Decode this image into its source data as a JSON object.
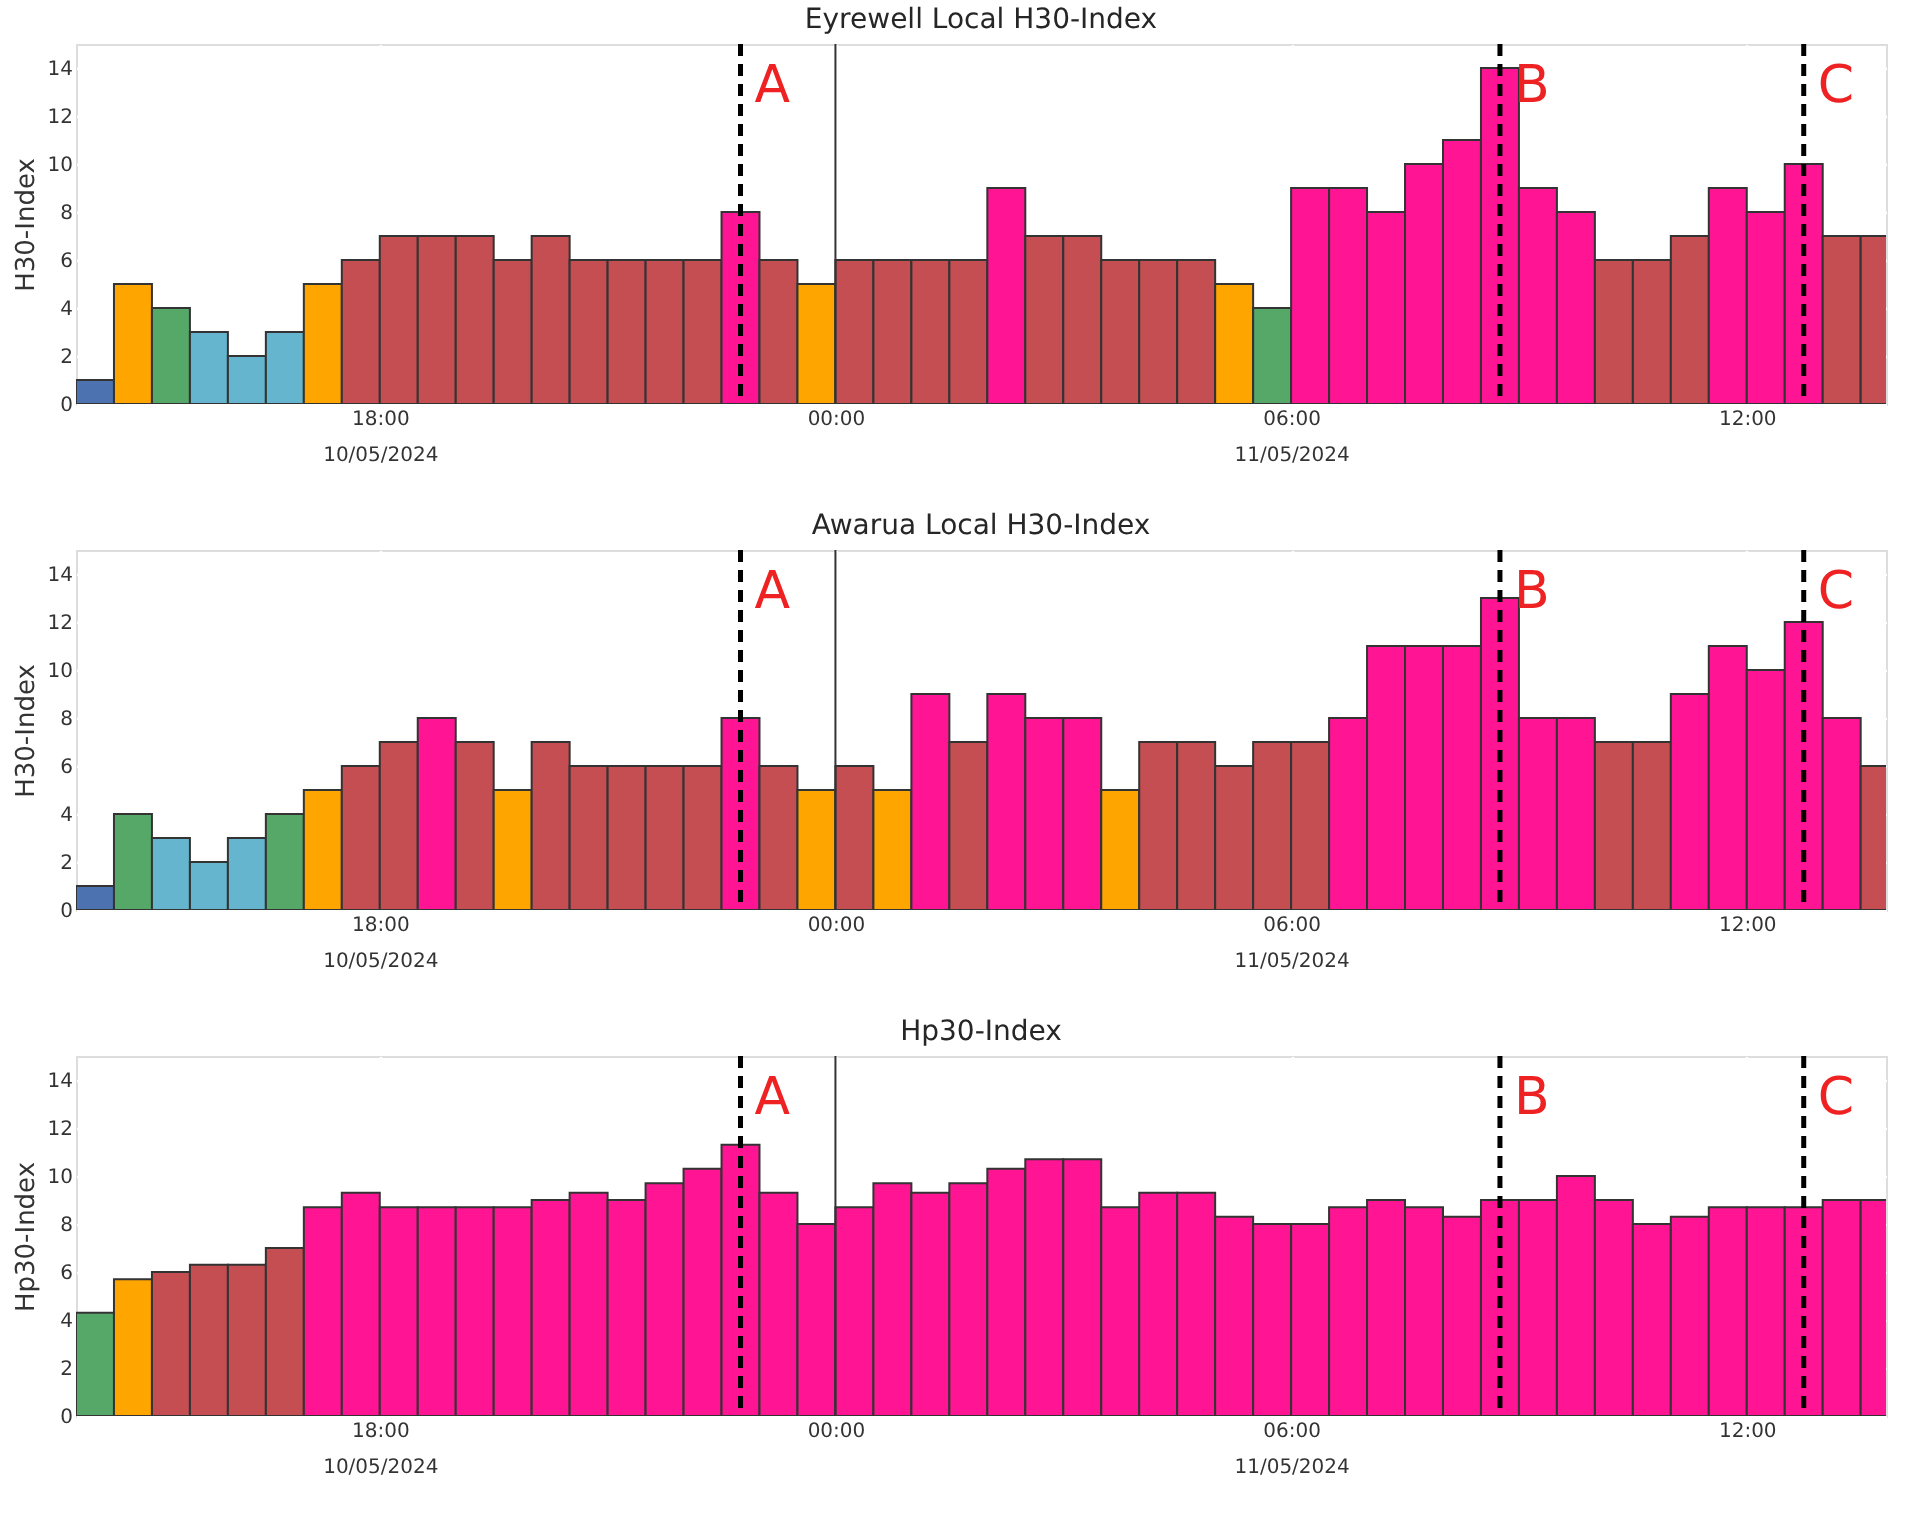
{
  "chart_data": [
    {
      "type": "bar",
      "title": "Eyrewell Local H30-Index",
      "ylabel": "H30-Index",
      "x": [
        "2024-05-10T14:15",
        "2024-05-10T14:45",
        "2024-05-10T15:15",
        "2024-05-10T15:45",
        "2024-05-10T16:15",
        "2024-05-10T16:45",
        "2024-05-10T17:15",
        "2024-05-10T17:45",
        "2024-05-10T18:15",
        "2024-05-10T18:45",
        "2024-05-10T19:15",
        "2024-05-10T19:45",
        "2024-05-10T20:15",
        "2024-05-10T20:45",
        "2024-05-10T21:15",
        "2024-05-10T21:45",
        "2024-05-10T22:15",
        "2024-05-10T22:45",
        "2024-05-10T23:15",
        "2024-05-10T23:45",
        "2024-05-11T00:15",
        "2024-05-11T00:45",
        "2024-05-11T01:15",
        "2024-05-11T01:45",
        "2024-05-11T02:15",
        "2024-05-11T02:45",
        "2024-05-11T03:15",
        "2024-05-11T03:45",
        "2024-05-11T04:15",
        "2024-05-11T04:45",
        "2024-05-11T05:15",
        "2024-05-11T05:45",
        "2024-05-11T06:15",
        "2024-05-11T06:45",
        "2024-05-11T07:15",
        "2024-05-11T07:45",
        "2024-05-11T08:15",
        "2024-05-11T08:45",
        "2024-05-11T09:15",
        "2024-05-11T09:45",
        "2024-05-11T10:15",
        "2024-05-11T10:45",
        "2024-05-11T11:15",
        "2024-05-11T11:45",
        "2024-05-11T12:15",
        "2024-05-11T12:45",
        "2024-05-11T13:15",
        "2024-05-11T13:45"
      ],
      "values": [
        1,
        5,
        4,
        3,
        2,
        3,
        5,
        6,
        7,
        7,
        7,
        6,
        7,
        6,
        6,
        6,
        6,
        8,
        6,
        5,
        6,
        6,
        6,
        6,
        9,
        7,
        7,
        6,
        6,
        6,
        5,
        4,
        9,
        9,
        8,
        10,
        11,
        14,
        9,
        8,
        6,
        6,
        7,
        9,
        8,
        10,
        7,
        7
      ],
      "colors": [
        "#4c72b0",
        "#ffa500",
        "#55a868",
        "#64b5cd",
        "#64b5cd",
        "#64b5cd",
        "#ffa500",
        "#c44e52",
        "#c44e52",
        "#c44e52",
        "#c44e52",
        "#c44e52",
        "#c44e52",
        "#c44e52",
        "#c44e52",
        "#c44e52",
        "#c44e52",
        "#ff1493",
        "#c44e52",
        "#ffa500",
        "#c44e52",
        "#c44e52",
        "#c44e52",
        "#c44e52",
        "#ff1493",
        "#c44e52",
        "#c44e52",
        "#c44e52",
        "#c44e52",
        "#c44e52",
        "#ffa500",
        "#55a868",
        "#ff1493",
        "#ff1493",
        "#ff1493",
        "#ff1493",
        "#ff1493",
        "#ff1493",
        "#ff1493",
        "#ff1493",
        "#c44e52",
        "#c44e52",
        "#c44e52",
        "#ff1493",
        "#ff1493",
        "#ff1493",
        "#c44e52",
        "#c44e52"
      ],
      "xlim": [
        "2024-05-10T14:00",
        "2024-05-11T13:50"
      ],
      "xticks": [
        {
          "value": "2024-05-10T18:00",
          "label": "18:00\n10/05/2024"
        },
        {
          "value": "2024-05-11T00:00",
          "label": "00:00"
        },
        {
          "value": "2024-05-11T06:00",
          "label": "06:00\n11/05/2024"
        },
        {
          "value": "2024-05-11T12:00",
          "label": "12:00"
        }
      ],
      "ylim": [
        0,
        15
      ],
      "yticks": [
        0,
        2,
        4,
        6,
        8,
        10,
        12,
        14
      ],
      "grid": true,
      "ref_lines": [
        {
          "axis": "x",
          "value": "2024-05-11T00:00",
          "color": "#333333",
          "line_style": "solid"
        },
        {
          "axis": "x",
          "value": "2024-05-10T22:45",
          "label": "A",
          "color": "#000000",
          "line_style": "dashed"
        },
        {
          "axis": "x",
          "value": "2024-05-11T08:45",
          "label": "B",
          "color": "#000000",
          "line_style": "dashed"
        },
        {
          "axis": "x",
          "value": "2024-05-11T12:45",
          "label": "C",
          "color": "#000000",
          "line_style": "dashed"
        }
      ]
    },
    {
      "type": "bar",
      "title": "Awarua Local H30-Index",
      "ylabel": "H30-Index",
      "x": [
        "2024-05-10T14:15",
        "2024-05-10T14:45",
        "2024-05-10T15:15",
        "2024-05-10T15:45",
        "2024-05-10T16:15",
        "2024-05-10T16:45",
        "2024-05-10T17:15",
        "2024-05-10T17:45",
        "2024-05-10T18:15",
        "2024-05-10T18:45",
        "2024-05-10T19:15",
        "2024-05-10T19:45",
        "2024-05-10T20:15",
        "2024-05-10T20:45",
        "2024-05-10T21:15",
        "2024-05-10T21:45",
        "2024-05-10T22:15",
        "2024-05-10T22:45",
        "2024-05-10T23:15",
        "2024-05-10T23:45",
        "2024-05-11T00:15",
        "2024-05-11T00:45",
        "2024-05-11T01:15",
        "2024-05-11T01:45",
        "2024-05-11T02:15",
        "2024-05-11T02:45",
        "2024-05-11T03:15",
        "2024-05-11T03:45",
        "2024-05-11T04:15",
        "2024-05-11T04:45",
        "2024-05-11T05:15",
        "2024-05-11T05:45",
        "2024-05-11T06:15",
        "2024-05-11T06:45",
        "2024-05-11T07:15",
        "2024-05-11T07:45",
        "2024-05-11T08:15",
        "2024-05-11T08:45",
        "2024-05-11T09:15",
        "2024-05-11T09:45",
        "2024-05-11T10:15",
        "2024-05-11T10:45",
        "2024-05-11T11:15",
        "2024-05-11T11:45",
        "2024-05-11T12:15",
        "2024-05-11T12:45",
        "2024-05-11T13:15",
        "2024-05-11T13:45"
      ],
      "values": [
        1,
        4,
        3,
        2,
        3,
        4,
        5,
        6,
        7,
        8,
        7,
        5,
        7,
        6,
        6,
        6,
        6,
        8,
        6,
        5,
        6,
        5,
        9,
        7,
        9,
        8,
        8,
        5,
        7,
        7,
        6,
        7,
        7,
        8,
        11,
        11,
        11,
        13,
        8,
        8,
        7,
        7,
        9,
        11,
        10,
        12,
        8,
        6
      ],
      "colors": [
        "#4c72b0",
        "#55a868",
        "#64b5cd",
        "#64b5cd",
        "#64b5cd",
        "#55a868",
        "#ffa500",
        "#c44e52",
        "#c44e52",
        "#ff1493",
        "#c44e52",
        "#ffa500",
        "#c44e52",
        "#c44e52",
        "#c44e52",
        "#c44e52",
        "#c44e52",
        "#ff1493",
        "#c44e52",
        "#ffa500",
        "#c44e52",
        "#ffa500",
        "#ff1493",
        "#c44e52",
        "#ff1493",
        "#ff1493",
        "#ff1493",
        "#ffa500",
        "#c44e52",
        "#c44e52",
        "#c44e52",
        "#c44e52",
        "#c44e52",
        "#ff1493",
        "#ff1493",
        "#ff1493",
        "#ff1493",
        "#ff1493",
        "#ff1493",
        "#ff1493",
        "#c44e52",
        "#c44e52",
        "#ff1493",
        "#ff1493",
        "#ff1493",
        "#ff1493",
        "#ff1493",
        "#c44e52"
      ],
      "xlim": [
        "2024-05-10T14:00",
        "2024-05-11T13:50"
      ],
      "xticks": [
        {
          "value": "2024-05-10T18:00",
          "label": "18:00\n10/05/2024"
        },
        {
          "value": "2024-05-11T00:00",
          "label": "00:00"
        },
        {
          "value": "2024-05-11T06:00",
          "label": "06:00\n11/05/2024"
        },
        {
          "value": "2024-05-11T12:00",
          "label": "12:00"
        }
      ],
      "ylim": [
        0,
        15
      ],
      "yticks": [
        0,
        2,
        4,
        6,
        8,
        10,
        12,
        14
      ],
      "grid": true,
      "ref_lines": [
        {
          "axis": "x",
          "value": "2024-05-11T00:00",
          "color": "#333333",
          "line_style": "solid"
        },
        {
          "axis": "x",
          "value": "2024-05-10T22:45",
          "label": "A",
          "color": "#000000",
          "line_style": "dashed"
        },
        {
          "axis": "x",
          "value": "2024-05-11T08:45",
          "label": "B",
          "color": "#000000",
          "line_style": "dashed"
        },
        {
          "axis": "x",
          "value": "2024-05-11T12:45",
          "label": "C",
          "color": "#000000",
          "line_style": "dashed"
        }
      ]
    },
    {
      "type": "bar",
      "title": "Hp30-Index",
      "ylabel": "Hp30-Index",
      "x": [
        "2024-05-10T14:15",
        "2024-05-10T14:45",
        "2024-05-10T15:15",
        "2024-05-10T15:45",
        "2024-05-10T16:15",
        "2024-05-10T16:45",
        "2024-05-10T17:15",
        "2024-05-10T17:45",
        "2024-05-10T18:15",
        "2024-05-10T18:45",
        "2024-05-10T19:15",
        "2024-05-10T19:45",
        "2024-05-10T20:15",
        "2024-05-10T20:45",
        "2024-05-10T21:15",
        "2024-05-10T21:45",
        "2024-05-10T22:15",
        "2024-05-10T22:45",
        "2024-05-10T23:15",
        "2024-05-10T23:45",
        "2024-05-11T00:15",
        "2024-05-11T00:45",
        "2024-05-11T01:15",
        "2024-05-11T01:45",
        "2024-05-11T02:15",
        "2024-05-11T02:45",
        "2024-05-11T03:15",
        "2024-05-11T03:45",
        "2024-05-11T04:15",
        "2024-05-11T04:45",
        "2024-05-11T05:15",
        "2024-05-11T05:45",
        "2024-05-11T06:15",
        "2024-05-11T06:45",
        "2024-05-11T07:15",
        "2024-05-11T07:45",
        "2024-05-11T08:15",
        "2024-05-11T08:45",
        "2024-05-11T09:15",
        "2024-05-11T09:45",
        "2024-05-11T10:15",
        "2024-05-11T10:45",
        "2024-05-11T11:15",
        "2024-05-11T11:45",
        "2024-05-11T12:15",
        "2024-05-11T12:45",
        "2024-05-11T13:15",
        "2024-05-11T13:45"
      ],
      "values": [
        4.3,
        5.7,
        6,
        6.3,
        6.3,
        7,
        8.7,
        9.3,
        8.7,
        8.7,
        8.7,
        8.7,
        9,
        9.3,
        9,
        9.7,
        10.3,
        11.3,
        9.3,
        8,
        8.7,
        9.7,
        9.3,
        9.7,
        10.3,
        10.7,
        10.7,
        8.7,
        9.3,
        9.3,
        8.3,
        8,
        8,
        8.7,
        9,
        8.7,
        8.3,
        9,
        9,
        10,
        9,
        8,
        8.3,
        8.7,
        8.7,
        8.7,
        9,
        9
      ],
      "colors": [
        "#55a868",
        "#ffa500",
        "#c44e52",
        "#c44e52",
        "#c44e52",
        "#c44e52",
        "#ff1493",
        "#ff1493",
        "#ff1493",
        "#ff1493",
        "#ff1493",
        "#ff1493",
        "#ff1493",
        "#ff1493",
        "#ff1493",
        "#ff1493",
        "#ff1493",
        "#ff1493",
        "#ff1493",
        "#ff1493",
        "#ff1493",
        "#ff1493",
        "#ff1493",
        "#ff1493",
        "#ff1493",
        "#ff1493",
        "#ff1493",
        "#ff1493",
        "#ff1493",
        "#ff1493",
        "#ff1493",
        "#ff1493",
        "#ff1493",
        "#ff1493",
        "#ff1493",
        "#ff1493",
        "#ff1493",
        "#ff1493",
        "#ff1493",
        "#ff1493",
        "#ff1493",
        "#ff1493",
        "#ff1493",
        "#ff1493",
        "#ff1493",
        "#ff1493",
        "#ff1493",
        "#ff1493"
      ],
      "xlim": [
        "2024-05-10T14:00",
        "2024-05-11T13:50"
      ],
      "xticks": [
        {
          "value": "2024-05-10T18:00",
          "label": "18:00\n10/05/2024"
        },
        {
          "value": "2024-05-11T00:00",
          "label": "00:00"
        },
        {
          "value": "2024-05-11T06:00",
          "label": "06:00\n11/05/2024"
        },
        {
          "value": "2024-05-11T12:00",
          "label": "12:00"
        }
      ],
      "ylim": [
        0,
        15
      ],
      "yticks": [
        0,
        2,
        4,
        6,
        8,
        10,
        12,
        14
      ],
      "grid": true,
      "ref_lines": [
        {
          "axis": "x",
          "value": "2024-05-11T00:00",
          "color": "#333333",
          "line_style": "solid"
        },
        {
          "axis": "x",
          "value": "2024-05-10T22:45",
          "label": "A",
          "color": "#000000",
          "line_style": "dashed"
        },
        {
          "axis": "x",
          "value": "2024-05-11T08:45",
          "label": "B",
          "color": "#000000",
          "line_style": "dashed"
        },
        {
          "axis": "x",
          "value": "2024-05-11T12:45",
          "label": "C",
          "color": "#000000",
          "line_style": "dashed"
        }
      ]
    }
  ]
}
